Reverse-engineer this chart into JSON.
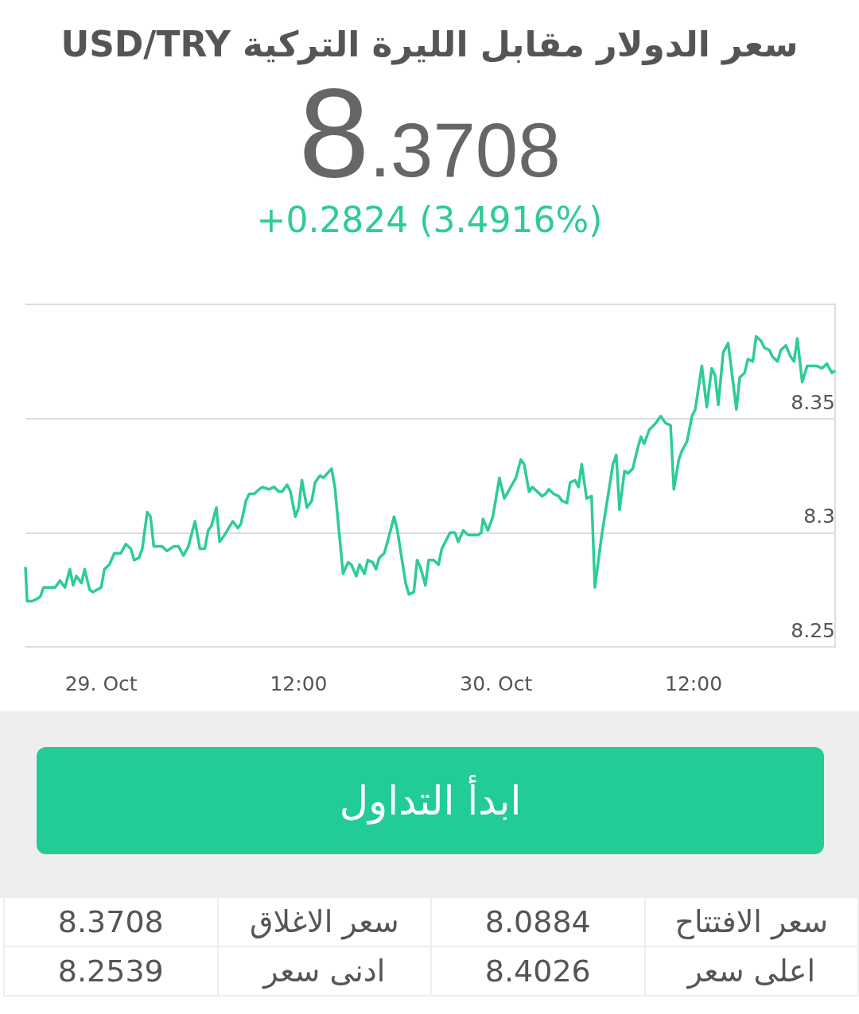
{
  "chart_data": {
    "type": "line",
    "title": "سعر الدولار مقابل الليرة التركية USD/TRY",
    "annotations": [
      "8.3708",
      "+0.2824 (3.4916%)",
      "ابدأ التداول",
      "سعر الافتتاح",
      "8.0884",
      "سعر الاغلاق",
      "8.3708",
      "اعلى سعر",
      "8.4026",
      "ادنى سعر",
      "8.2539"
    ],
    "xlim": [
      "--10-28T19:24",
      "--10-30T20:36"
    ],
    "xticks": [
      {
        "value": "--10-29",
        "label": "29. Oct"
      },
      {
        "value": "--10-29T12:00",
        "label": "12:00"
      },
      {
        "value": "--10-30",
        "label": "30. Oct"
      },
      {
        "value": "--10-30T12:00",
        "label": "12:00"
      }
    ],
    "ylim": [
      8.25,
      8.4
    ],
    "yticks": [
      8.25,
      8.3,
      8.35,
      {
        "value": 8.4,
        "label": null
      }
    ],
    "grid": "y",
    "marker": "none",
    "series": [
      {
        "color": "#2ecc96",
        "x": [
          "--10-28T19:24",
          "--10-28T19:30",
          "--10-28T19:48",
          "--10-28T20:06",
          "--10-28T20:18",
          "--10-28T20:30",
          "--10-28T21:12",
          "--10-28T21:30",
          "--10-28T21:48",
          "--10-28T22:06",
          "--10-28T22:18",
          "--10-28T22:30",
          "--10-28T22:48",
          "--10-28T23:00",
          "--10-28T23:18",
          "--10-28T23:30",
          "--10-29T00:00",
          "--10-29T00:12",
          "--10-29T00:30",
          "--10-29T00:48",
          "--10-29T01:12",
          "--10-29T01:30",
          "--10-29T01:48",
          "--10-29T02:00",
          "--10-29T02:18",
          "--10-29T02:30",
          "--10-29T02:48",
          "--10-29T03:00",
          "--10-29T03:12",
          "--10-29T03:42",
          "--10-29T04:00",
          "--10-29T04:24",
          "--10-29T04:42",
          "--10-29T05:00",
          "--10-29T05:18",
          "--10-29T05:42",
          "--10-29T06:00",
          "--10-29T06:18",
          "--10-29T06:30",
          "--10-29T06:42",
          "--10-29T07:00",
          "--10-29T07:12",
          "--10-29T07:30",
          "--10-29T08:00",
          "--10-29T08:18",
          "--10-29T08:30",
          "--10-29T08:48",
          "--10-29T09:00",
          "--10-29T09:18",
          "--10-29T09:36",
          "--10-29T09:48",
          "--10-29T10:12",
          "--10-29T10:30",
          "--10-29T10:48",
          "--10-29T11:00",
          "--10-29T11:18",
          "--10-29T11:30",
          "--10-29T11:48",
          "--10-29T12:00",
          "--10-29T12:12",
          "--10-29T12:30",
          "--10-29T12:48",
          "--10-29T13:00",
          "--10-29T13:18",
          "--10-29T13:30",
          "--10-29T14:00",
          "--10-29T14:12",
          "--10-29T14:42",
          "--10-29T15:00",
          "--10-29T15:12",
          "--10-29T15:30",
          "--10-29T15:42",
          "--10-29T16:00",
          "--10-29T16:12",
          "--10-29T16:30",
          "--10-29T16:42",
          "--10-29T16:54",
          "--10-29T17:12",
          "--10-29T17:24",
          "--10-29T17:48",
          "--10-29T18:00",
          "--10-29T18:30",
          "--10-29T18:42",
          "--10-29T19:00",
          "--10-29T19:12",
          "--10-29T19:24",
          "--10-29T19:42",
          "--10-29T19:54",
          "--10-29T20:12",
          "--10-29T20:30",
          "--10-29T20:42",
          "--10-29T21:12",
          "--10-29T21:30",
          "--10-29T21:42",
          "--10-29T22:00",
          "--10-29T22:18",
          "--10-29T22:54",
          "--10-29T23:06",
          "--10-29T23:12",
          "--10-29T23:30",
          "--10-29T23:48",
          "--10-30T00:12",
          "--10-30T00:30",
          "--10-30T01:12",
          "--10-30T01:30",
          "--10-30T01:42",
          "--10-30T02:00",
          "--10-30T02:12",
          "--10-30T02:30",
          "--10-30T02:48",
          "--10-30T03:00",
          "--10-30T03:12",
          "--10-30T03:30",
          "--10-30T03:48",
          "--10-30T04:00",
          "--10-30T04:18",
          "--10-30T04:30",
          "--10-30T04:48",
          "--10-30T05:00",
          "--10-30T05:12",
          "--10-30T05:30",
          "--10-30T05:48",
          "--10-30T06:00",
          "--10-30T06:24",
          "--10-30T07:06",
          "--10-30T07:18",
          "--10-30T07:30",
          "--10-30T07:48",
          "--10-30T08:00",
          "--10-30T08:18",
          "--10-30T08:36",
          "--10-30T08:48",
          "--10-30T09:00",
          "--10-30T09:18",
          "--10-30T09:42",
          "--10-30T10:00",
          "--10-30T10:18",
          "--10-30T10:36",
          "--10-30T10:48",
          "--10-30T11:06",
          "--10-30T11:18",
          "--10-30T11:36",
          "--10-30T11:54",
          "--10-30T12:06",
          "--10-30T12:30",
          "--10-30T12:48",
          "--10-30T13:06",
          "--10-30T13:18",
          "--10-30T13:30",
          "--10-30T13:48",
          "--10-30T14:06",
          "--10-30T14:36",
          "--10-30T14:48",
          "--10-30T15:06",
          "--10-30T15:18",
          "--10-30T15:36",
          "--10-30T15:48",
          "--10-30T16:06",
          "--10-30T16:18",
          "--10-30T16:36",
          "--10-30T16:48",
          "--10-30T17:06",
          "--10-30T17:18",
          "--10-30T17:36",
          "--10-30T17:54",
          "--10-30T18:06",
          "--10-30T18:18",
          "--10-30T18:36",
          "--10-30T18:54",
          "--10-30T19:30",
          "--10-30T19:48",
          "--10-30T20:06",
          "--10-30T20:24",
          "--10-30T20:36"
        ],
        "values": [
          8.285,
          8.27,
          8.27,
          8.271,
          8.272,
          8.276,
          8.276,
          8.279,
          8.276,
          8.284,
          8.277,
          8.281,
          8.278,
          8.284,
          8.275,
          8.274,
          8.276,
          8.284,
          8.286,
          8.291,
          8.291,
          8.295,
          8.293,
          8.288,
          8.289,
          8.293,
          8.309,
          8.307,
          8.294,
          8.294,
          8.292,
          8.294,
          8.294,
          8.29,
          8.294,
          8.305,
          8.293,
          8.293,
          8.301,
          8.303,
          8.311,
          8.296,
          8.299,
          8.305,
          8.302,
          8.304,
          8.314,
          8.317,
          8.317,
          8.319,
          8.32,
          8.319,
          8.32,
          8.318,
          8.318,
          8.321,
          8.318,
          8.307,
          8.311,
          8.323,
          8.311,
          8.314,
          8.322,
          8.325,
          8.324,
          8.328,
          8.32,
          8.282,
          8.287,
          8.286,
          8.281,
          8.286,
          8.282,
          8.288,
          8.287,
          8.284,
          8.289,
          8.291,
          8.296,
          8.307,
          8.301,
          8.278,
          8.273,
          8.274,
          8.288,
          8.285,
          8.277,
          8.288,
          8.288,
          8.286,
          8.293,
          8.3,
          8.3,
          8.296,
          8.301,
          8.299,
          8.299,
          8.3,
          8.306,
          8.301,
          8.307,
          8.324,
          8.315,
          8.324,
          8.332,
          8.33,
          8.318,
          8.32,
          8.318,
          8.316,
          8.317,
          8.319,
          8.317,
          8.316,
          8.314,
          8.313,
          8.322,
          8.323,
          8.32,
          8.33,
          8.315,
          8.316,
          8.276,
          8.298,
          8.33,
          8.334,
          8.31,
          8.327,
          8.326,
          8.328,
          8.337,
          8.342,
          8.339,
          8.345,
          8.348,
          8.351,
          8.348,
          8.347,
          8.319,
          8.332,
          8.336,
          8.34,
          8.351,
          8.354,
          8.373,
          8.355,
          8.372,
          8.369,
          8.356,
          8.379,
          8.383,
          8.354,
          8.368,
          8.37,
          8.376,
          8.375,
          8.386,
          8.384,
          8.381,
          8.38,
          8.377,
          8.375,
          8.38,
          8.382,
          8.377,
          8.375,
          8.385,
          8.366,
          8.373,
          8.373,
          8.372,
          8.374,
          8.37,
          8.371
        ]
      }
    ]
  }
}
